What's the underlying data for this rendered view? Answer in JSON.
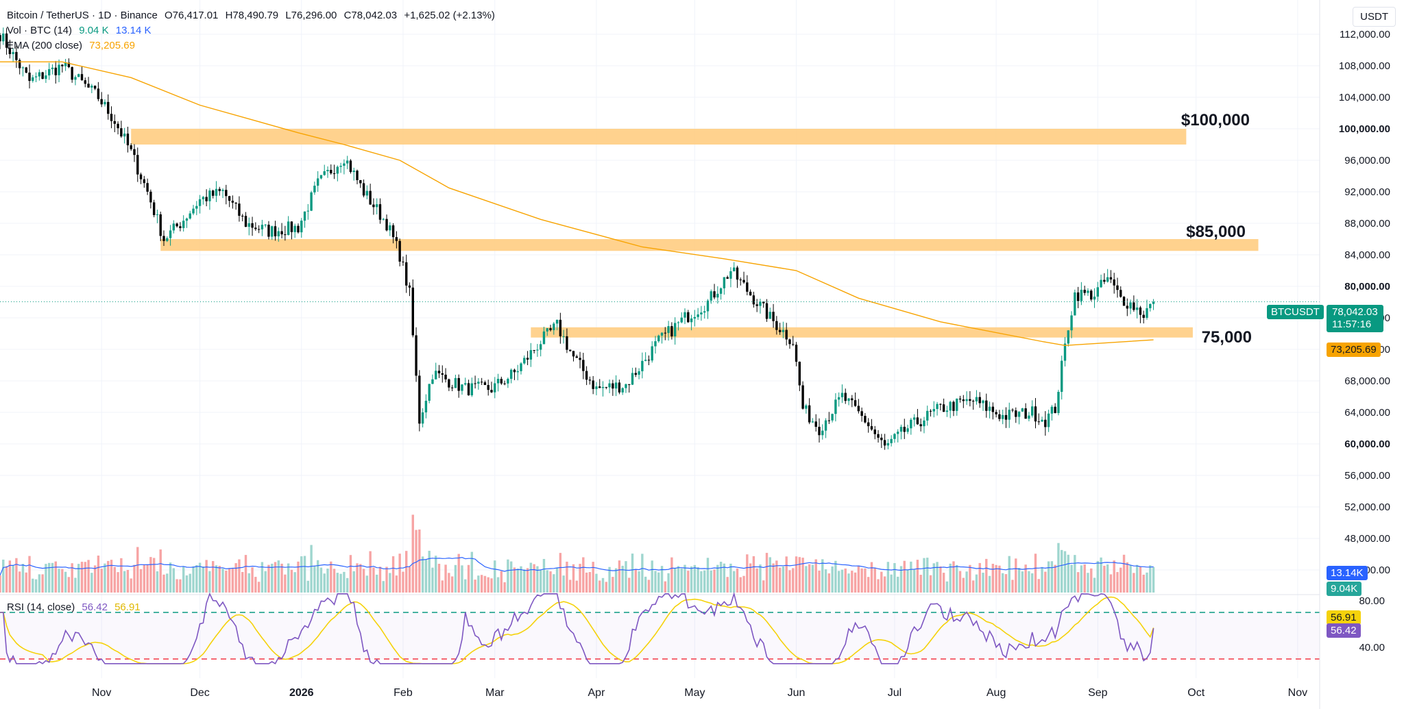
{
  "header": {
    "symbol": "Bitcoin / TetherUS · 1D · Binance",
    "open": "O76,417.01",
    "high": "H78,490.79",
    "low": "L76,296.00",
    "close": "C78,042.03",
    "change": "+1,625.02 (+2.13%)",
    "vol_label": "Vol · BTC (14)",
    "vol_value": "9.04 K",
    "vol_ma": "13.14 K",
    "ema_label": "EMA (200 close)",
    "ema_value": "73,205.69"
  },
  "price_axis": {
    "unit": "USDT",
    "ticks": [
      "112,000.00",
      "108,000.00",
      "104,000.00",
      "100,000.00",
      "96,000.00",
      "92,000.00",
      "88,000.00",
      "84,000.00",
      "80,000.00",
      "76,000.00",
      "72,000.00",
      "68,000.00",
      "64,000.00",
      "60,000.00",
      "56,000.00",
      "52,000.00",
      "48,000.00",
      "44,000.00"
    ],
    "bold_ticks": [
      "100,000.00",
      "80,000.00",
      "60,000.00"
    ]
  },
  "rsi": {
    "label": "RSI (14, close)",
    "value": "56.42",
    "ma_value": "56.91",
    "ticks": [
      "80.00",
      "40.00"
    ]
  },
  "time_axis": [
    "Nov",
    "Dec",
    "2026",
    "Feb",
    "Mar",
    "Apr",
    "May",
    "Jun",
    "Jul",
    "Aug",
    "Sep",
    "Oct",
    "Nov"
  ],
  "tags": {
    "symbol": "BTCUSDT",
    "last_price": "78,042.03",
    "countdown": "11:57:16",
    "ema_tag": "73,205.69",
    "vol_ma_tag": "13.14K",
    "vol_tag": "9.04K"
  },
  "annotations": [
    "$100,000",
    "$85,000",
    "75,000"
  ],
  "colors": {
    "up": "#089981",
    "down": "#000000",
    "ema": "#f7a300",
    "zone": "#ffcd82",
    "vol_up": "#9fd6cf",
    "vol_down": "#f7a4a4",
    "vol_ma": "#2962ff",
    "rsi": "#7e57c2",
    "rsi_ma": "#f5d20b",
    "rsi_upper": "#089981",
    "rsi_lower": "#f23645"
  },
  "chart_data": {
    "type": "candlestick",
    "title": "Bitcoin / TetherUS · 1D · Binance",
    "timeframe": "1D",
    "x": [
      "2025-10",
      "2025-11",
      "2025-12",
      "2026-01",
      "2026-02",
      "2026-03",
      "2026-04",
      "2026-05",
      "2026-06",
      "2026-07",
      "2026-08",
      "2026-09"
    ],
    "ylim": [
      42000,
      114000
    ],
    "waypoints": [
      [
        "2025-10-01",
        112000
      ],
      [
        "2025-10-10",
        106000
      ],
      [
        "2025-10-20",
        108000
      ],
      [
        "2025-10-31",
        104000
      ],
      [
        "2025-11-05",
        101000
      ],
      [
        "2025-11-10",
        97000
      ],
      [
        "2025-11-15",
        92000
      ],
      [
        "2025-11-20",
        86000
      ],
      [
        "2025-11-25",
        88000
      ],
      [
        "2025-12-01",
        91000
      ],
      [
        "2025-12-08",
        92000
      ],
      [
        "2025-12-15",
        88000
      ],
      [
        "2025-12-22",
        87000
      ],
      [
        "2025-12-31",
        87500
      ],
      [
        "2026-01-06",
        93000
      ],
      [
        "2026-01-14",
        96500
      ],
      [
        "2026-01-20",
        92000
      ],
      [
        "2026-01-27",
        88000
      ],
      [
        "2026-01-31",
        84000
      ],
      [
        "2026-02-03",
        79000
      ],
      [
        "2026-02-06",
        63000
      ],
      [
        "2026-02-10",
        69000
      ],
      [
        "2026-02-20",
        67000
      ],
      [
        "2026-02-28",
        67000
      ],
      [
        "2026-03-07",
        69000
      ],
      [
        "2026-03-15",
        73000
      ],
      [
        "2026-03-20",
        75000
      ],
      [
        "2026-03-25",
        71000
      ],
      [
        "2026-04-01",
        67000
      ],
      [
        "2026-04-10",
        67500
      ],
      [
        "2026-04-20",
        73000
      ],
      [
        "2026-04-28",
        76000
      ],
      [
        "2026-05-05",
        78000
      ],
      [
        "2026-05-12",
        82000
      ],
      [
        "2026-05-18",
        79000
      ],
      [
        "2026-05-24",
        76000
      ],
      [
        "2026-05-31",
        73000
      ],
      [
        "2026-06-03",
        64500
      ],
      [
        "2026-06-08",
        62000
      ],
      [
        "2026-06-15",
        66000
      ],
      [
        "2026-06-22",
        63000
      ],
      [
        "2026-06-28",
        59500
      ],
      [
        "2026-07-05",
        62000
      ],
      [
        "2026-07-15",
        64500
      ],
      [
        "2026-07-25",
        65500
      ],
      [
        "2026-08-03",
        63500
      ],
      [
        "2026-08-12",
        64000
      ],
      [
        "2026-08-16",
        63000
      ],
      [
        "2026-08-19",
        64500
      ],
      [
        "2026-08-23",
        75000
      ],
      [
        "2026-08-25",
        79000
      ],
      [
        "2026-08-31",
        79000
      ],
      [
        "2026-09-04",
        81000
      ],
      [
        "2026-09-08",
        78500
      ],
      [
        "2026-09-12",
        77500
      ],
      [
        "2026-09-15",
        76500
      ],
      [
        "2026-09-18",
        78042
      ]
    ],
    "ema200": [
      [
        "2025-10-01",
        108500
      ],
      [
        "2025-10-20",
        108500
      ],
      [
        "2025-11-10",
        106500
      ],
      [
        "2025-12-01",
        103000
      ],
      [
        "2025-12-31",
        99500
      ],
      [
        "2026-01-14",
        98000
      ],
      [
        "2026-01-31",
        96000
      ],
      [
        "2026-02-15",
        92500
      ],
      [
        "2026-03-15",
        88500
      ],
      [
        "2026-04-15",
        85000
      ],
      [
        "2026-05-10",
        83500
      ],
      [
        "2026-06-01",
        82000
      ],
      [
        "2026-06-20",
        78500
      ],
      [
        "2026-07-15",
        75500
      ],
      [
        "2026-08-15",
        73000
      ],
      [
        "2026-08-22",
        72500
      ],
      [
        "2026-09-18",
        73205
      ]
    ],
    "zones": [
      {
        "label": "$100,000",
        "low": 98000,
        "high": 100000,
        "from": "2025-11-10",
        "to": "2026-09-28"
      },
      {
        "label": "$85,000",
        "low": 84500,
        "high": 86000,
        "from": "2025-11-19",
        "to": "2026-10-20"
      },
      {
        "label": "75,000",
        "low": 73500,
        "high": 74800,
        "from": "2026-03-12",
        "to": "2026-09-30"
      }
    ],
    "last_price": 78042.03,
    "ema_last": 73205.69,
    "volume_ma_last": 13140,
    "volume_last": 9040,
    "rsi_last": 56.42,
    "rsi_ma_last": 56.91,
    "rsi_levels": [
      70,
      30
    ]
  }
}
